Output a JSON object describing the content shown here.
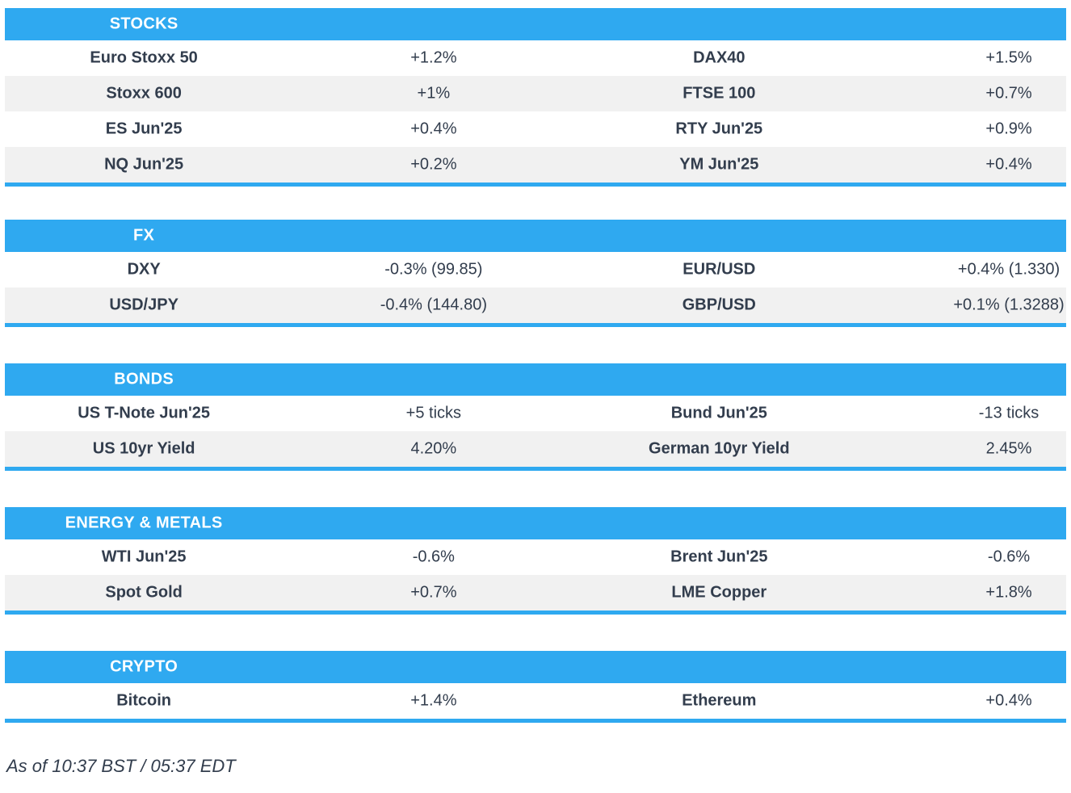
{
  "theme": {
    "accent": "#2FA9F0",
    "row-alt": "#F1F1F1",
    "text": "#323D4D",
    "header-text": "#FFFFFF"
  },
  "sections": [
    {
      "title": "STOCKS",
      "rows": [
        {
          "l1": "Euro Stoxx 50",
          "v1": "+1.2%",
          "l2": "DAX40",
          "v2": "+1.5%"
        },
        {
          "l1": "Stoxx 600",
          "v1": "+1%",
          "l2": "FTSE 100",
          "v2": "+0.7%"
        },
        {
          "l1": "ES Jun'25",
          "v1": "+0.4%",
          "l2": "RTY Jun'25",
          "v2": "+0.9%"
        },
        {
          "l1": "NQ Jun'25",
          "v1": "+0.2%",
          "l2": "YM Jun'25",
          "v2": "+0.4%"
        }
      ]
    },
    {
      "title": "FX",
      "rows": [
        {
          "l1": "DXY",
          "v1": "-0.3% (99.85)",
          "l2": "EUR/USD",
          "v2": "+0.4% (1.330)"
        },
        {
          "l1": "USD/JPY",
          "v1": "-0.4% (144.80)",
          "l2": "GBP/USD",
          "v2": "+0.1% (1.3288)"
        }
      ]
    },
    {
      "title": "BONDS",
      "rows": [
        {
          "l1": "US T-Note Jun'25",
          "v1": "+5 ticks",
          "l2": "Bund Jun'25",
          "v2": "-13 ticks"
        },
        {
          "l1": "US 10yr Yield",
          "v1": "4.20%",
          "l2": "German 10yr Yield",
          "v2": "2.45%"
        }
      ]
    },
    {
      "title": "ENERGY & METALS",
      "rows": [
        {
          "l1": "WTI Jun'25",
          "v1": "-0.6%",
          "l2": "Brent Jun'25",
          "v2": "-0.6%"
        },
        {
          "l1": "Spot Gold",
          "v1": "+0.7%",
          "l2": "LME Copper",
          "v2": "+1.8%"
        }
      ]
    },
    {
      "title": "CRYPTO",
      "rows": [
        {
          "l1": "Bitcoin",
          "v1": "+1.4%",
          "l2": "Ethereum",
          "v2": "+0.4%"
        }
      ]
    }
  ],
  "footer": {
    "as_of": "As of 10:37 BST / 05:37 EDT"
  },
  "chart_data": [
    {
      "type": "table",
      "title": "STOCKS",
      "rows": [
        [
          "Euro Stoxx 50",
          "+1.2%",
          "DAX40",
          "+1.5%"
        ],
        [
          "Stoxx 600",
          "+1%",
          "FTSE 100",
          "+0.7%"
        ],
        [
          "ES Jun'25",
          "+0.4%",
          "RTY Jun'25",
          "+0.9%"
        ],
        [
          "NQ Jun'25",
          "+0.2%",
          "YM Jun'25",
          "+0.4%"
        ]
      ]
    },
    {
      "type": "table",
      "title": "FX",
      "rows": [
        [
          "DXY",
          "-0.3% (99.85)",
          "EUR/USD",
          "+0.4% (1.330)"
        ],
        [
          "USD/JPY",
          "-0.4% (144.80)",
          "GBP/USD",
          "+0.1% (1.3288)"
        ]
      ]
    },
    {
      "type": "table",
      "title": "BONDS",
      "rows": [
        [
          "US T-Note Jun'25",
          "+5 ticks",
          "Bund Jun'25",
          "-13 ticks"
        ],
        [
          "US 10yr Yield",
          "4.20%",
          "German 10yr Yield",
          "2.45%"
        ]
      ]
    },
    {
      "type": "table",
      "title": "ENERGY & METALS",
      "rows": [
        [
          "WTI Jun'25",
          "-0.6%",
          "Brent Jun'25",
          "-0.6%"
        ],
        [
          "Spot Gold",
          "+0.7%",
          "LME Copper",
          "+1.8%"
        ]
      ]
    },
    {
      "type": "table",
      "title": "CRYPTO",
      "rows": [
        [
          "Bitcoin",
          "+1.4%",
          "Ethereum",
          "+0.4%"
        ]
      ]
    }
  ]
}
